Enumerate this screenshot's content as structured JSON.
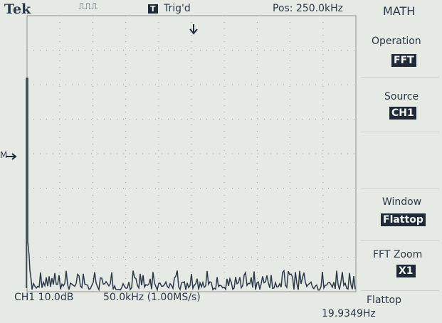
{
  "header": {
    "brand": "Tek",
    "trigger_icon": "T",
    "trigger_status": "Trig'd",
    "position": "Pos: 250.0kHz",
    "menu_title": "MATH"
  },
  "marker": "M",
  "menu": [
    {
      "label": "Operation",
      "value": "FFT"
    },
    {
      "label": "Source",
      "value": "CH1"
    },
    {
      "label": "Window",
      "value": "Flattop"
    },
    {
      "label": "FFT Zoom",
      "value": "X1"
    }
  ],
  "footer": {
    "channel": "CH1 10.0dB",
    "timebase": "50.0kHz (1.00MS/s)",
    "window": "Flattop",
    "frequency": "19.9349Hz"
  }
}
